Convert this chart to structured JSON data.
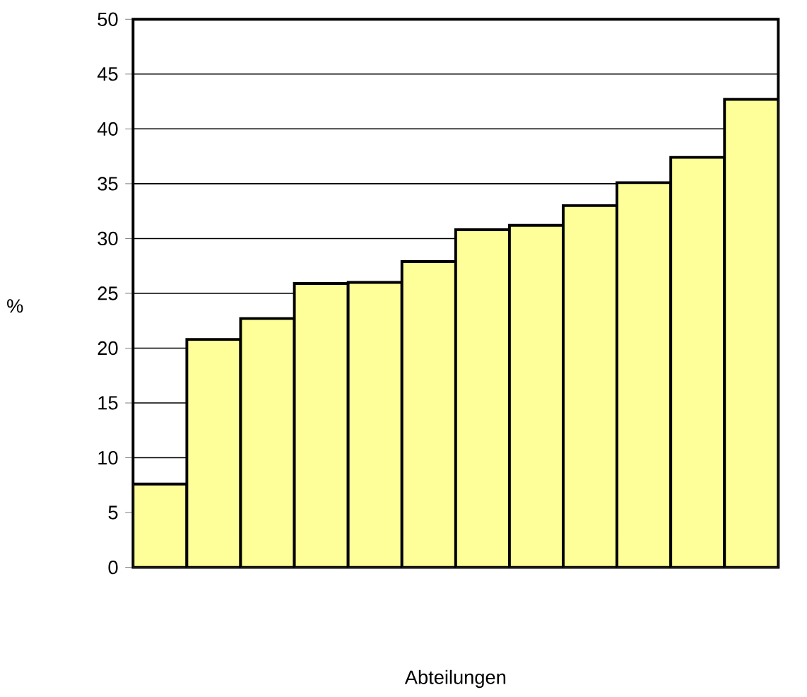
{
  "chart_data": {
    "type": "bar",
    "xlabel": "Abteilungen",
    "ylabel": "%",
    "categories": [
      null,
      null,
      null,
      null,
      null,
      null,
      null,
      null,
      null,
      null,
      null,
      null
    ],
    "values": [
      7.6,
      20.8,
      22.7,
      25.9,
      26.0,
      27.9,
      30.8,
      31.2,
      33.0,
      35.1,
      37.4,
      42.7
    ],
    "color": "#ffff99",
    "ylim": [
      0,
      50
    ],
    "yticks": [
      0,
      5,
      10,
      15,
      20,
      25,
      30,
      35,
      40,
      45,
      50
    ],
    "grid": "y"
  }
}
